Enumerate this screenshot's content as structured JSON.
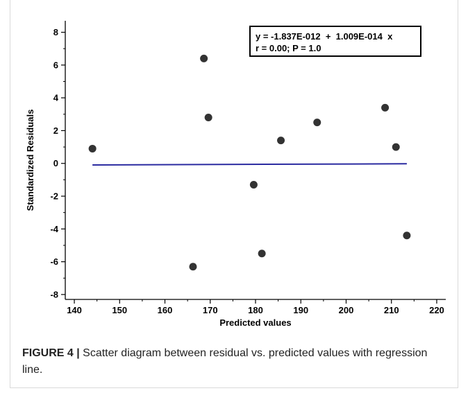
{
  "chart_data": {
    "type": "scatter",
    "title": "",
    "xlabel": "Predicted values",
    "ylabel": "Standardized Residuals",
    "xlim": [
      138,
      222
    ],
    "ylim": [
      -8.3,
      8.7
    ],
    "x_ticks": [
      140,
      150,
      160,
      170,
      180,
      190,
      200,
      210,
      220
    ],
    "y_ticks": [
      8,
      6,
      4,
      2,
      0,
      -2,
      -4,
      -6,
      -8
    ],
    "x_tick_labels": [
      "140",
      "150",
      "160",
      "170",
      "180",
      "190",
      "200",
      "210",
      "220"
    ],
    "y_tick_labels": [
      "8",
      "6",
      "4",
      "2",
      "0",
      "-2",
      "-4",
      "-6",
      "-8"
    ],
    "points": [
      {
        "x": 144.0,
        "y": 0.9
      },
      {
        "x": 166.2,
        "y": -6.3
      },
      {
        "x": 168.6,
        "y": 6.4
      },
      {
        "x": 169.6,
        "y": 2.8
      },
      {
        "x": 179.6,
        "y": -1.3
      },
      {
        "x": 181.4,
        "y": -5.5
      },
      {
        "x": 185.6,
        "y": 1.4
      },
      {
        "x": 193.6,
        "y": 2.5
      },
      {
        "x": 208.6,
        "y": 3.4
      },
      {
        "x": 211.0,
        "y": 1.0
      },
      {
        "x": 213.4,
        "y": -4.4
      }
    ],
    "regression_line": {
      "x_start": 144.0,
      "x_end": 213.4,
      "intercept": -0.1,
      "slope": 0.001
    },
    "annotation": {
      "line1": "y = -1.837E-012  +  1.009E-014  x",
      "line2": "r = 0.00; P = 1.0"
    },
    "grid": false,
    "colors": {
      "points": "#333333",
      "line": "#2a2aa0",
      "axes": "#000000"
    }
  },
  "caption": {
    "label": "FIGURE 4 |",
    "text": " Scatter diagram between residual vs. predicted values with regression line."
  }
}
